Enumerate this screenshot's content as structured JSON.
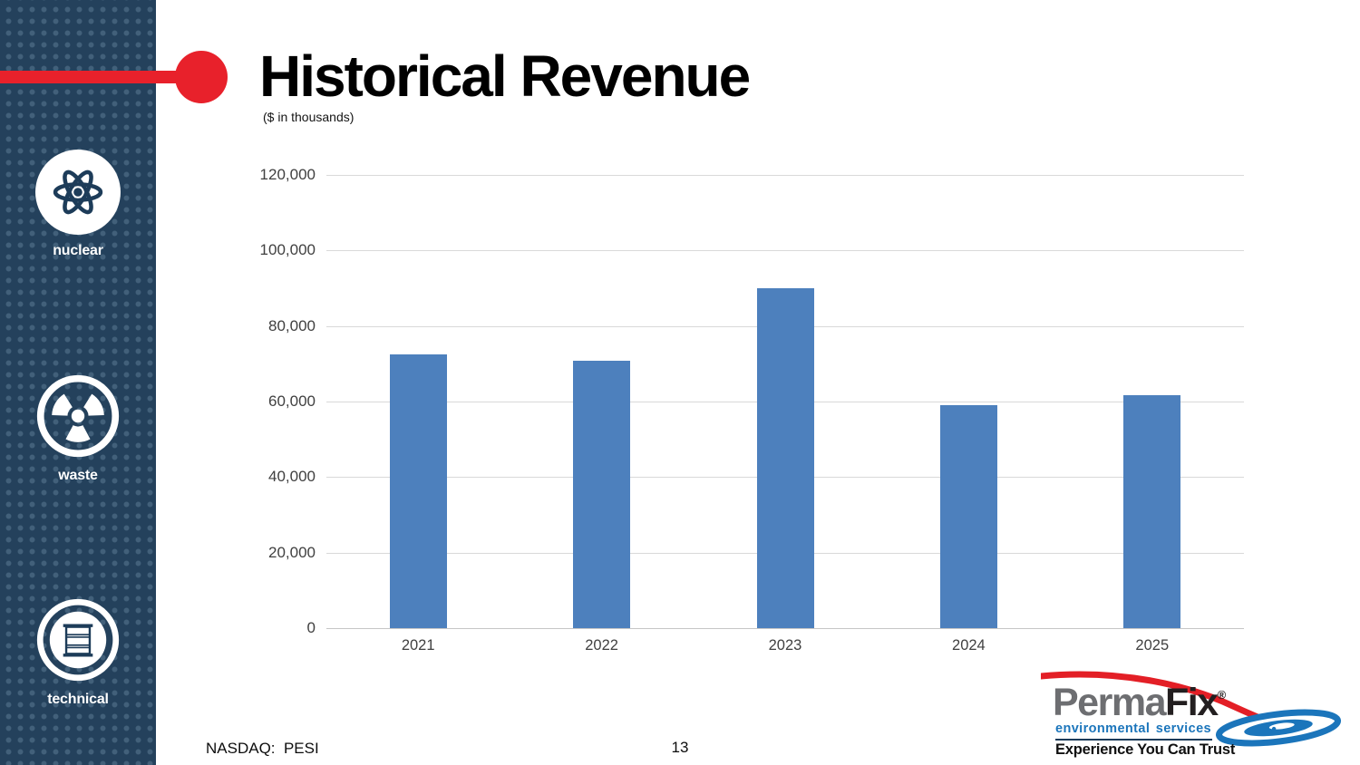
{
  "slide": {
    "title": "Historical Revenue",
    "subtitle": "($ in thousands)",
    "ticker": "NASDAQ:  PESI",
    "page_number": "13"
  },
  "sidebar": {
    "items": [
      {
        "label": "nuclear",
        "icon": "atom-icon"
      },
      {
        "label": "waste",
        "icon": "radiation-icon"
      },
      {
        "label": "technical",
        "icon": "drum-icon"
      }
    ],
    "colors": {
      "background": "#24415c",
      "dot": "#42607a",
      "icon": "#ffffff"
    }
  },
  "accent": {
    "color": "#e8212b"
  },
  "chart_data": {
    "type": "bar",
    "title": "Historical Revenue",
    "units": "$ in thousands",
    "categories": [
      "2021",
      "2022",
      "2023",
      "2024",
      "2025"
    ],
    "values": [
      72400,
      70700,
      89900,
      59100,
      61700
    ],
    "ylim": [
      0,
      120000
    ],
    "ytick_step": 20000,
    "ytick_labels": [
      "120,000",
      "100,000",
      "80,000",
      "60,000",
      "40,000",
      "20,000",
      "0"
    ],
    "xlabel": "",
    "ylabel": "",
    "grid": true,
    "legend": false,
    "bar_color": "#4d80bd",
    "gridline_color": "#d9d9d9"
  },
  "logo": {
    "brand_gray": "Perma",
    "brand_black": "Fix",
    "registered": "®",
    "line1": "environmental services",
    "line2": "Experience You Can Trust",
    "colors": {
      "gray": "#6d6e71",
      "black": "#231f20",
      "blue": "#1b75bb",
      "red": "#e31f26"
    }
  }
}
